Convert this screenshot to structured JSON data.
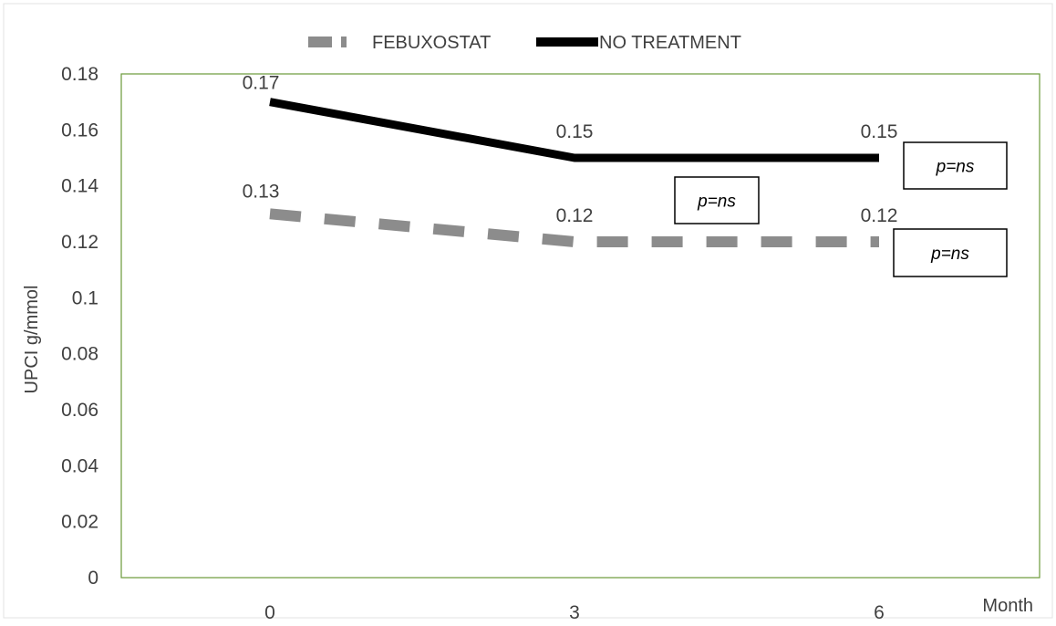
{
  "chart_data": {
    "type": "line",
    "title": "",
    "xlabel": "Month",
    "ylabel": "UPCI g/mmol",
    "categories": [
      "0",
      "3",
      "6"
    ],
    "ylim": [
      0,
      0.18
    ],
    "yticks": [
      0,
      0.02,
      0.04,
      0.06,
      0.08,
      0.1,
      0.12,
      0.14,
      0.16,
      0.18
    ],
    "ytick_labels": [
      "0",
      "0.02",
      "0.04",
      "0.06",
      "0.08",
      "0.1",
      "0.12",
      "0.14",
      "0.16",
      "0.18"
    ],
    "grid": false,
    "legend_position": "top",
    "series": [
      {
        "name": "FEBUXOSTAT",
        "values": [
          0.13,
          0.12,
          0.12
        ],
        "labels": [
          "0.13",
          "0.12",
          "0.12"
        ],
        "color": "#8c8c8c",
        "style": "dashed"
      },
      {
        "name": "NO TREATMENT",
        "values": [
          0.17,
          0.15,
          0.15
        ],
        "labels": [
          "0.17",
          "0.15",
          "0.15"
        ],
        "color": "#000000",
        "style": "solid"
      }
    ],
    "annotations": [
      {
        "text": "p=ns",
        "series": "between",
        "category": "3"
      },
      {
        "text": "p=ns",
        "series": "NO TREATMENT",
        "category": "6"
      },
      {
        "text": "p=ns",
        "series": "FEBUXOSTAT",
        "category": "6"
      }
    ],
    "plot_border_color": "#6a9a3a"
  }
}
